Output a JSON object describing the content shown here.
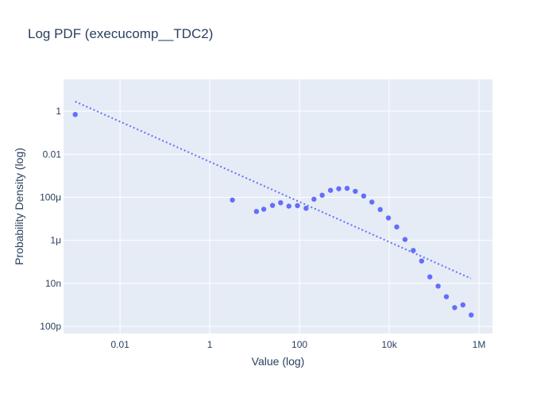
{
  "chart_data": {
    "type": "scatter",
    "title": "Log PDF (execucomp__TDC2)",
    "xlabel": "Value (log)",
    "ylabel": "Probability Density (log)",
    "x_scale": "log",
    "y_scale": "log",
    "xlim": [
      0.00055,
      2000000
    ],
    "ylim": [
      4.7e-11,
      30
    ],
    "grid": true,
    "legend": "none",
    "colors": {
      "plot_bg": "#e5ecf6",
      "grid": "#ffffff",
      "marker": "#636efa",
      "fit_line": "#636efa",
      "text": "#2a3f5f"
    },
    "x_ticks": [
      {
        "value": 0.01,
        "label": "0.01"
      },
      {
        "value": 1,
        "label": "1"
      },
      {
        "value": 100,
        "label": "100"
      },
      {
        "value": 10000,
        "label": "10k"
      },
      {
        "value": 1000000,
        "label": "1M"
      }
    ],
    "y_ticks": [
      {
        "value": 1,
        "label": "1"
      },
      {
        "value": 0.01,
        "label": "0.01"
      },
      {
        "value": 0.0001,
        "label": "100μ"
      },
      {
        "value": 1e-06,
        "label": "1μ"
      },
      {
        "value": 1e-08,
        "label": "10n"
      },
      {
        "value": 1e-10,
        "label": "100p"
      }
    ],
    "series": [
      {
        "type": "scatter",
        "points": [
          {
            "x": 0.001,
            "y": 0.7
          },
          {
            "x": 3.2,
            "y": 7.5e-05
          },
          {
            "x": 11,
            "y": 2.2e-05
          },
          {
            "x": 16,
            "y": 2.8e-05
          },
          {
            "x": 25,
            "y": 4.2e-05
          },
          {
            "x": 38,
            "y": 5.6e-05
          },
          {
            "x": 58,
            "y": 3.9e-05
          },
          {
            "x": 90,
            "y": 4.1e-05
          },
          {
            "x": 140,
            "y": 3.1e-05
          },
          {
            "x": 210,
            "y": 8.1e-05
          },
          {
            "x": 320,
            "y": 0.000125
          },
          {
            "x": 490,
            "y": 0.00021
          },
          {
            "x": 750,
            "y": 0.00025
          },
          {
            "x": 1150,
            "y": 0.00026
          },
          {
            "x": 1750,
            "y": 0.00019
          },
          {
            "x": 2700,
            "y": 0.000115
          },
          {
            "x": 4100,
            "y": 6e-05
          },
          {
            "x": 6300,
            "y": 2.7e-05
          },
          {
            "x": 9600,
            "y": 1.1e-05
          },
          {
            "x": 14700,
            "y": 4.2e-06
          },
          {
            "x": 22500,
            "y": 1.1e-06
          },
          {
            "x": 34400,
            "y": 3.4e-07
          },
          {
            "x": 52600,
            "y": 1.1e-07
          },
          {
            "x": 80400,
            "y": 2e-08
          },
          {
            "x": 123000,
            "y": 7.5e-09
          },
          {
            "x": 188000,
            "y": 2.4e-09
          },
          {
            "x": 287000,
            "y": 7.5e-10
          },
          {
            "x": 439000,
            "y": 1e-09
          },
          {
            "x": 671000,
            "y": 3.4e-10
          }
        ]
      },
      {
        "type": "line",
        "style": "dotted",
        "points": [
          {
            "x": 0.001,
            "y": 2.8
          },
          {
            "x": 660000,
            "y": 1.7e-08
          }
        ]
      }
    ]
  }
}
